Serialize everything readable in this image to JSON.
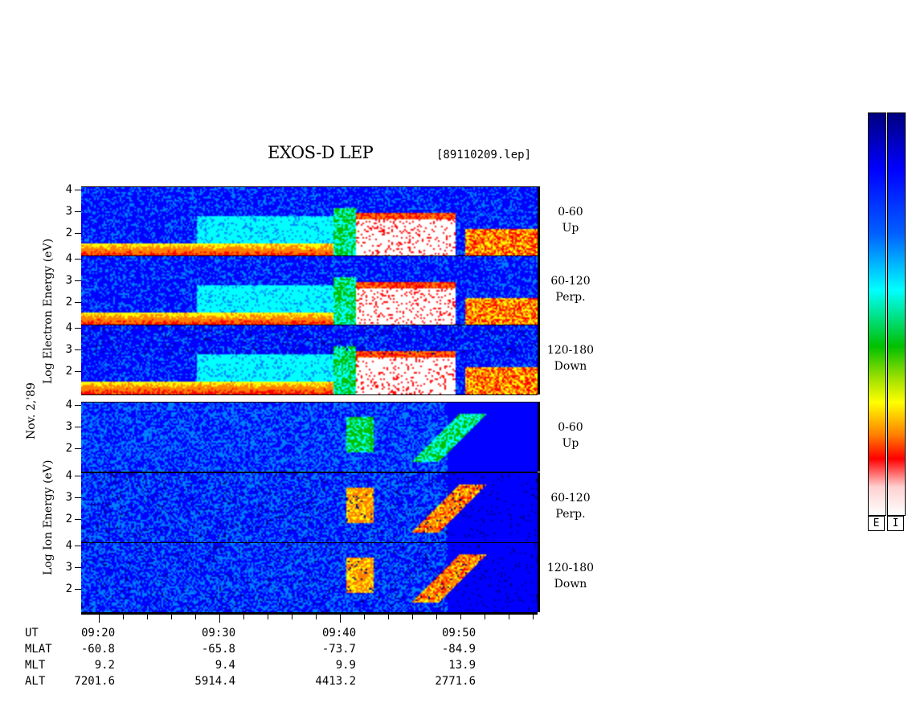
{
  "title": "EXOS-D LEP",
  "file_label": "[89110209.lep]",
  "date_label": "Nov. 2,'89",
  "electron_axis_label": "Log Electron Energy (eV)",
  "ion_axis_label": "Log Ion Energy (eV)",
  "panels": [
    {
      "species": "electron",
      "pitch": "0-60",
      "dir": "Up"
    },
    {
      "species": "electron",
      "pitch": "60-120",
      "dir": "Perp."
    },
    {
      "species": "electron",
      "pitch": "120-180",
      "dir": "Down"
    },
    {
      "species": "ion",
      "pitch": "0-60",
      "dir": "Up"
    },
    {
      "species": "ion",
      "pitch": "60-120",
      "dir": "Perp."
    },
    {
      "species": "ion",
      "pitch": "120-180",
      "dir": "Down"
    }
  ],
  "y_ticks": [
    "4",
    "3",
    "2"
  ],
  "time_rows": [
    {
      "name": "UT",
      "values": [
        "09:20",
        "09:30",
        "09:40",
        "09:50"
      ]
    },
    {
      "name": "MLAT",
      "values": [
        "-60.8",
        "-65.8",
        "-73.7",
        "-84.9"
      ]
    },
    {
      "name": "MLT",
      "values": [
        "9.2",
        "9.4",
        "9.9",
        "13.9"
      ]
    },
    {
      "name": "ALT",
      "values": [
        "7201.6",
        "5914.4",
        "4413.2",
        "2771.6"
      ]
    }
  ],
  "colorbars": [
    {
      "label": "E"
    },
    {
      "label": "I"
    }
  ],
  "chart_data": {
    "type": "heatmap",
    "title": "EXOS-D LEP",
    "xlabel": "UT",
    "x_ticks": [
      "09:20",
      "09:30",
      "09:40",
      "09:50"
    ],
    "x_range": [
      "09:18",
      "09:56"
    ],
    "ylabel_electron": "Log Electron Energy (eV)",
    "ylabel_ion": "Log Ion Energy (eV)",
    "ylim": [
      1,
      4.2
    ],
    "y_ticks": [
      2,
      3,
      4
    ],
    "colorscale": [
      "#ffffff",
      "#ff0000",
      "#ff8000",
      "#ffff00",
      "#00c000",
      "#00ffff",
      "#0080ff",
      "#0000ff",
      "#000080"
    ]
  }
}
